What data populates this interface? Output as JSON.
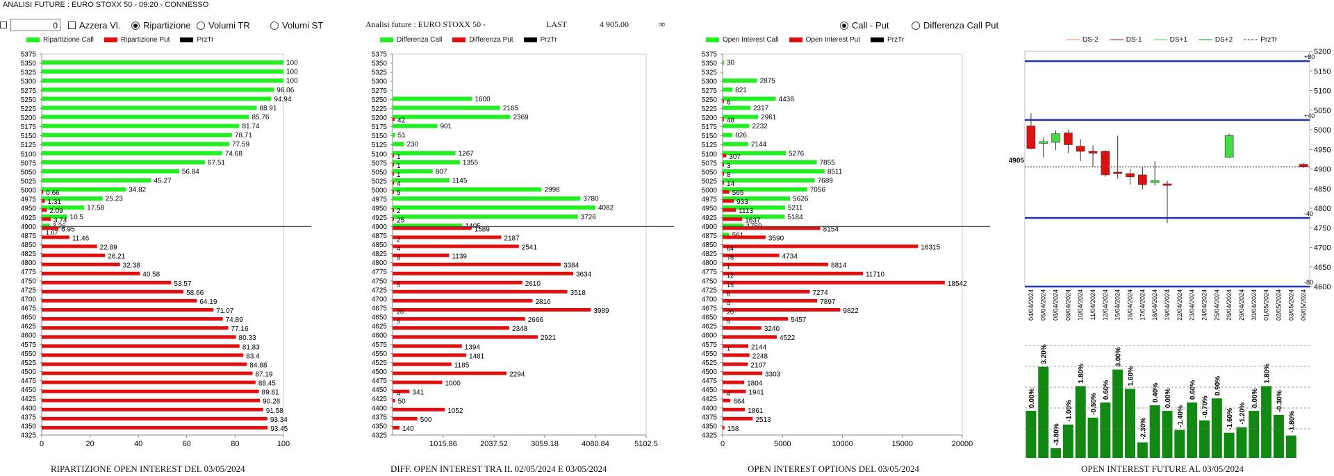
{
  "window": {
    "title": "ANALISI FUTURE : EURO STOXX 50 - 09:20 - CONNESSO"
  },
  "controls": {
    "zero_value": "0",
    "azzera_label": "Azzera Vl.",
    "radio_ripartizione": "Ripartizione",
    "radio_volumi_tr": "Volumi TR",
    "radio_volumi_st": "Volumi ST",
    "analisi_label": "Analisi future : EURO STOXX 50 -",
    "last_label": "LAST",
    "last_value": "4 905.00",
    "infinity_label": "∞",
    "radio_call_put": "Call - Put",
    "radio_diff_call_put": "Differenza Call Put"
  },
  "colors": {
    "call": "#22ee22",
    "put": "#e01010",
    "prz": "#000000",
    "candle_green": "#44dd44",
    "candle_red": "#dd1111",
    "bar_green": "#118811",
    "blue": "#1f2fbf"
  },
  "strikes": [
    "5375",
    "5350",
    "5325",
    "5300",
    "5275",
    "5250",
    "5225",
    "5200",
    "5175",
    "5150",
    "5125",
    "5100",
    "5075",
    "5050",
    "5025",
    "5000",
    "4975",
    "4950",
    "4925",
    "4900",
    "4875",
    "4850",
    "4825",
    "4800",
    "4775",
    "4750",
    "4725",
    "4700",
    "4675",
    "4650",
    "4625",
    "4600",
    "4575",
    "4550",
    "4525",
    "4500",
    "4475",
    "4450",
    "4425",
    "4400",
    "4375",
    "4350",
    "4325"
  ],
  "price_strike": "4900",
  "charts": [
    {
      "legend": [
        "Ripartizione Call",
        "Ripartizione Put",
        "PrzTr"
      ],
      "xticks": [
        "0",
        "20",
        "40",
        "60",
        "80",
        "100"
      ],
      "xmax": 100,
      "caption": "RIPARTIZIONE OPEN INTEREST DEL 03/05/2024",
      "call": [
        null,
        100,
        100,
        100,
        96.06,
        94.94,
        88.91,
        85.76,
        81.74,
        78.71,
        77.59,
        74.68,
        67.51,
        56.84,
        45.27,
        34.82,
        25.23,
        17.58,
        10.5,
        3.26,
        null,
        null,
        null,
        null,
        null,
        null,
        null,
        null,
        null,
        null,
        null,
        null,
        null,
        null,
        null,
        null,
        null,
        null,
        null,
        null,
        null,
        null,
        null
      ],
      "call_labels": [
        "",
        "100",
        "100",
        "100",
        "96.06",
        "94.94",
        "88.91",
        "85.76",
        "81.74",
        "78.71",
        "77.59",
        "74.68",
        "67.51",
        "56.84",
        "45.27",
        "34.82",
        "25.23",
        "17.58",
        "10.5",
        "3.26",
        "",
        "",
        "",
        "",
        "",
        "",
        "",
        "",
        "",
        "",
        "",
        "",
        "",
        "",
        "",
        "",
        "",
        "",
        "",
        "",
        "",
        "",
        ""
      ],
      "put": [
        null,
        null,
        null,
        null,
        null,
        null,
        null,
        null,
        null,
        null,
        null,
        null,
        null,
        null,
        null,
        0.66,
        1.31,
        2.09,
        3.74,
        6.95,
        11.46,
        22.89,
        26.21,
        32.38,
        40.58,
        53.57,
        58.66,
        64.19,
        71.07,
        74.89,
        77.16,
        80.33,
        81.83,
        83.4,
        84.88,
        87.19,
        88.45,
        89.81,
        90.28,
        91.58,
        93.34,
        93.45,
        null
      ],
      "put_labels": [
        "",
        "",
        "",
        "",
        "",
        "",
        "",
        "",
        "",
        "",
        "",
        "",
        "",
        "",
        "",
        "0.66",
        "1.31",
        "2.09",
        "3.74",
        "6.95",
        "11.46",
        "22.89",
        "26.21",
        "32.38",
        "40.58",
        "53.57",
        "58.66",
        "64.19",
        "71.07",
        "74.89",
        "77.16",
        "80.33",
        "81.83",
        "83.4",
        "84.88",
        "87.19",
        "88.45",
        "89.81",
        "90.28",
        "91.58",
        "93.34",
        "93.45",
        ""
      ],
      "extra_labels": [
        "1.07"
      ]
    },
    {
      "legend": [
        "Differenza Call",
        "Differenza Put",
        "PrzTr"
      ],
      "xticks": [
        "1015.86",
        "2037.52",
        "3059.18",
        "4080.84",
        "5102.5"
      ],
      "xmax": 5102.5,
      "caption": "DIFF. OPEN INTEREST TRA IL 02/05/2024 E 03/05/2024",
      "call": [
        null,
        null,
        null,
        null,
        null,
        1600,
        2165,
        2369,
        901,
        51,
        230,
        1267,
        1355,
        807,
        1145,
        2998,
        3780,
        4082,
        3726,
        1405,
        null,
        null,
        null,
        null,
        null,
        null,
        null,
        null,
        null,
        null,
        null,
        null,
        null,
        null,
        null,
        null,
        null,
        null,
        null,
        null,
        null,
        null,
        null
      ],
      "call_labels": [
        "",
        "",
        "",
        "",
        "",
        "1600",
        "2165",
        "2369",
        "901",
        "51",
        "230",
        "1267",
        "1355",
        "807",
        "1145",
        "2998",
        "3780",
        "4082",
        "3726",
        "1405",
        "",
        "",
        "",
        "",
        "",
        "",
        "",
        "",
        "",
        "",
        "",
        "",
        "",
        "",
        "",
        "",
        "",
        "",
        "",
        "",
        "",
        "",
        ""
      ],
      "put": [
        null,
        null,
        null,
        null,
        null,
        null,
        null,
        42,
        null,
        null,
        null,
        1,
        1,
        1,
        4,
        5,
        null,
        2,
        25,
        1589,
        2187,
        2541,
        1139,
        3384,
        3634,
        2610,
        3518,
        2816,
        3989,
        2666,
        2348,
        2921,
        1394,
        1481,
        1185,
        2294,
        1000,
        341,
        50,
        1052,
        500,
        140,
        null
      ],
      "put_labels": [
        "",
        "",
        "",
        "",
        "",
        "",
        "",
        "42",
        "",
        "",
        "",
        "1",
        "1",
        "1",
        "4",
        "5",
        "",
        "2",
        "25",
        "1589",
        "2187",
        "2541",
        "1139",
        "3384",
        "3634",
        "2610",
        "3518",
        "2816",
        "3989",
        "2666",
        "2348",
        "2921",
        "1394",
        "1481",
        "1185",
        "2294",
        "1000",
        "341",
        "50",
        "1052",
        "500",
        "140",
        ""
      ],
      "inner_labels": [
        "",
        "",
        "",
        "",
        "",
        "",
        "",
        "",
        "",
        "",
        "",
        "",
        "",
        "",
        "",
        "",
        "",
        "",
        "",
        "",
        "2",
        "4",
        "8",
        "",
        "",
        "5",
        "",
        "",
        "20",
        "5",
        "",
        "",
        "",
        "",
        "",
        "",
        "",
        "4",
        "",
        "",
        "",
        "",
        ""
      ]
    },
    {
      "legend": [
        "Open Interest Call",
        "Open Interest Put",
        "PrzTr"
      ],
      "xticks": [
        "0",
        "5000",
        "10000",
        "15000",
        "20000"
      ],
      "xmax": 20000,
      "caption": "OPEN INTEREST OPTIONS DEL 03/05/2024",
      "call": [
        null,
        30,
        null,
        2875,
        821,
        4438,
        2317,
        2961,
        2232,
        826,
        2144,
        5276,
        7855,
        8511,
        7689,
        7056,
        5626,
        5211,
        5184,
        1759,
        561,
        null,
        null,
        null,
        null,
        null,
        null,
        null,
        null,
        null,
        null,
        null,
        null,
        null,
        null,
        null,
        null,
        null,
        null,
        null,
        null,
        null,
        null
      ],
      "call_labels": [
        "",
        "30",
        "",
        "2875",
        "821",
        "4438",
        "2317",
        "2961",
        "2232",
        "826",
        "2144",
        "5276",
        "7855",
        "8511",
        "7689",
        "7056",
        "5626",
        "5211",
        "5184",
        "1759",
        "561",
        "",
        "",
        "",
        "",
        "",
        "",
        "",
        "",
        "",
        "",
        "",
        "",
        "",
        "",
        "",
        "",
        "",
        "",
        "",
        "",
        "",
        ""
      ],
      "put": [
        null,
        null,
        null,
        null,
        null,
        6,
        null,
        48,
        null,
        null,
        null,
        307,
        3,
        8,
        14,
        565,
        933,
        1113,
        1637,
        8154,
        3590,
        16315,
        4734,
        8814,
        11710,
        18542,
        7274,
        7897,
        9822,
        5457,
        3240,
        4522,
        2144,
        2248,
        2107,
        3303,
        1804,
        1941,
        664,
        1861,
        2513,
        158,
        null
      ],
      "put_labels": [
        "",
        "",
        "",
        "",
        "",
        "6",
        "",
        "48",
        "",
        "",
        "",
        "307",
        "3",
        "8",
        "14",
        "565",
        "933",
        "1113",
        "1637",
        "8154",
        "3590",
        "16315",
        "4734",
        "8814",
        "11710",
        "18542",
        "7274",
        "7897",
        "9822",
        "5457",
        "3240",
        "4522",
        "2144",
        "2248",
        "2107",
        "3303",
        "1804",
        "1941",
        "664",
        "1861",
        "2513",
        "158",
        ""
      ],
      "inner_labels": [
        "",
        "",
        "",
        "",
        "",
        "",
        "",
        "",
        "",
        "",
        "",
        "",
        "",
        "",
        "",
        "",
        "",
        "",
        "",
        "",
        "",
        "64",
        "78",
        "1",
        "12",
        "15",
        "6",
        "4",
        "20",
        "5",
        "",
        "",
        "1",
        "",
        "",
        "",
        "",
        "4",
        "",
        "",
        "",
        "",
        ""
      ]
    }
  ],
  "chart_data": {
    "type": "candlestick",
    "legend": [
      "DS-2",
      "DS-1",
      "DS+1",
      "DS+2",
      "PrzTr"
    ],
    "y_ticks": [
      "5200",
      "5150",
      "5100",
      "5050",
      "5000",
      "4950",
      "4900",
      "4850",
      "4800",
      "4750",
      "4700",
      "4650",
      "4600"
    ],
    "ylim": [
      4600,
      5200
    ],
    "dates": [
      "04/04/2024",
      "05/04/2024",
      "08/04/2024",
      "09/04/2024",
      "10/04/2024",
      "11/04/2024",
      "12/04/2024",
      "15/04/2024",
      "16/04/2024",
      "17/04/2024",
      "18/04/2024",
      "19/04/2024",
      "22/04/2024",
      "23/04/2024",
      "24/04/2024",
      "25/04/2024",
      "26/04/2024",
      "29/04/2024",
      "30/04/2024",
      "01/05/2024",
      "02/05/2024",
      "03/05/2024",
      "06/05/2024"
    ],
    "candles": [
      {
        "o": 5010,
        "c": 4952,
        "h": 5042,
        "l": 4950
      },
      {
        "o": 4965,
        "c": 4970,
        "h": 4980,
        "l": 4930
      },
      {
        "o": 4968,
        "c": 4990,
        "h": 4998,
        "l": 4948
      },
      {
        "o": 4992,
        "c": 4962,
        "h": 5000,
        "l": 4940
      },
      {
        "o": 4958,
        "c": 4945,
        "h": 4975,
        "l": 4920
      },
      {
        "o": 4945,
        "c": 4940,
        "h": 4960,
        "l": 4905
      },
      {
        "o": 4945,
        "c": 4885,
        "h": 4948,
        "l": 4880
      },
      {
        "o": 4892,
        "c": 4888,
        "h": 4985,
        "l": 4875
      },
      {
        "o": 4888,
        "c": 4880,
        "h": 4900,
        "l": 4860
      },
      {
        "o": 4885,
        "c": 4860,
        "h": 4905,
        "l": 4848
      },
      {
        "o": 4865,
        "c": 4870,
        "h": 4920,
        "l": 4858
      },
      {
        "o": 4862,
        "c": 4858,
        "h": 4870,
        "l": 4762
      },
      null,
      null,
      null,
      null,
      {
        "o": 4930,
        "c": 4985,
        "h": 4990,
        "l": 4928
      },
      null,
      null,
      null,
      null,
      null,
      {
        "o": 4912,
        "c": 4905,
        "h": 4915,
        "l": 4903
      }
    ],
    "blue_levels": [
      5175,
      5025,
      4775,
      4600
    ],
    "blue_labels": [
      "+80",
      "+40",
      "-40",
      "-80"
    ],
    "price": 4905,
    "price_label": "4905",
    "oi_change_values": [
      0.0,
      3.2,
      -3.8,
      -1.0,
      1.8,
      -0.5,
      0.6,
      3.0,
      1.6,
      -2.3,
      0.4,
      0.0,
      -1.4,
      0.6,
      -0.7,
      0.9,
      -1.6,
      -1.2,
      0.0,
      1.8,
      -0.3,
      -1.8
    ],
    "oi_change_labels": [
      "0.00%",
      "3.20%",
      "-3.80%",
      "-1.00%",
      "1.80%",
      "-0.50%",
      "0.60%",
      "3.00%",
      "1.60%",
      "-2.30%",
      "0.40%",
      "0.00%",
      "-1.40%",
      "0.60%",
      "-0.70%",
      "0.90%",
      "-1.60%",
      "-1.20%",
      "0.00%",
      "1.80%",
      "-0.30%",
      "-1.80%"
    ],
    "caption": "OPEN INTEREST FUTURE AL 03/05/2024"
  }
}
